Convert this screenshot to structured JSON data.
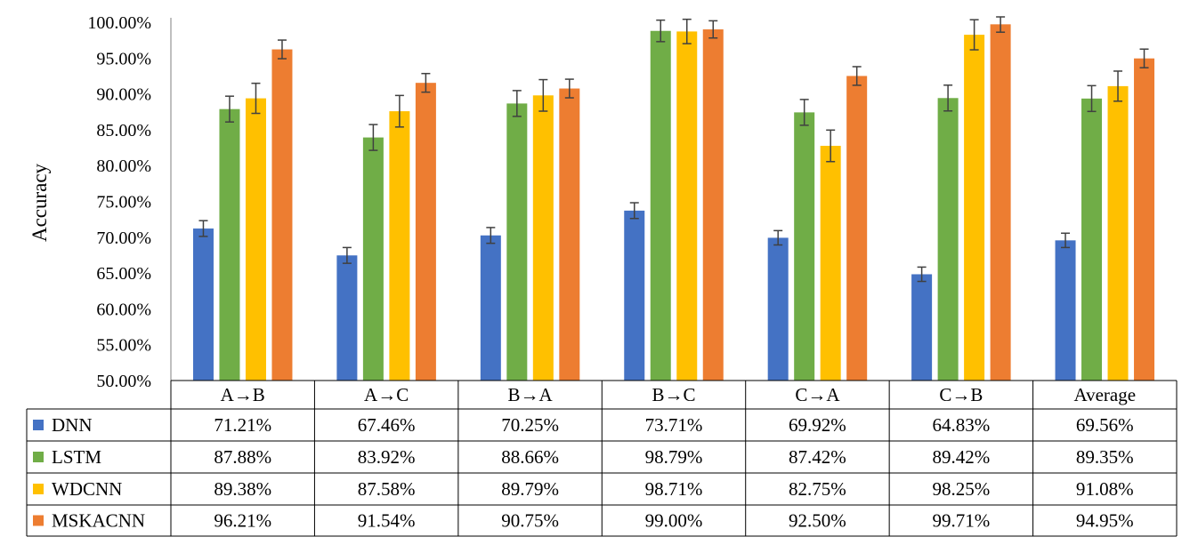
{
  "chart_data": {
    "type": "bar",
    "title": "",
    "xlabel": "",
    "ylabel": "Accuracy",
    "ylim": [
      50,
      100
    ],
    "y_ticks": [
      "50.00%",
      "55.00%",
      "60.00%",
      "65.00%",
      "70.00%",
      "75.00%",
      "80.00%",
      "85.00%",
      "90.00%",
      "95.00%",
      "100.00%"
    ],
    "categories": [
      "A→B",
      "A→C",
      "B→A",
      "B→C",
      "C→A",
      "C→B",
      "Average"
    ],
    "series": [
      {
        "name": "DNN",
        "color": "#4472C4",
        "values": [
          71.21,
          67.46,
          70.25,
          73.71,
          69.92,
          64.83,
          69.56
        ],
        "labels": [
          "71.21%",
          "67.46%",
          "70.25%",
          "73.71%",
          "69.92%",
          "64.83%",
          "69.56%"
        ],
        "error": [
          1.1,
          1.1,
          1.1,
          1.1,
          1.0,
          1.0,
          1.0
        ]
      },
      {
        "name": "LSTM",
        "color": "#70AD47",
        "values": [
          87.88,
          83.92,
          88.66,
          98.79,
          87.42,
          89.42,
          89.35
        ],
        "labels": [
          "87.88%",
          "83.92%",
          "88.66%",
          "98.79%",
          "87.42%",
          "89.42%",
          "89.35%"
        ],
        "error": [
          1.8,
          1.8,
          1.8,
          1.5,
          1.8,
          1.8,
          1.8
        ]
      },
      {
        "name": "WDCNN",
        "color": "#FFC000",
        "values": [
          89.38,
          87.58,
          89.79,
          98.71,
          82.75,
          98.25,
          91.08
        ],
        "labels": [
          "89.38%",
          "87.58%",
          "89.79%",
          "98.71%",
          "82.75%",
          "98.25%",
          "91.08%"
        ],
        "error": [
          2.1,
          2.2,
          2.2,
          1.7,
          2.2,
          2.1,
          2.1
        ]
      },
      {
        "name": "MSKACNN",
        "color": "#ED7D31",
        "values": [
          96.21,
          91.54,
          90.75,
          99.0,
          92.5,
          99.71,
          94.95
        ],
        "labels": [
          "96.21%",
          "91.54%",
          "90.75%",
          "99.00%",
          "92.50%",
          "99.71%",
          "94.95%"
        ],
        "error": [
          1.3,
          1.3,
          1.3,
          1.2,
          1.3,
          1.1,
          1.3
        ]
      }
    ],
    "grid": false,
    "legend": "data-table-left"
  }
}
